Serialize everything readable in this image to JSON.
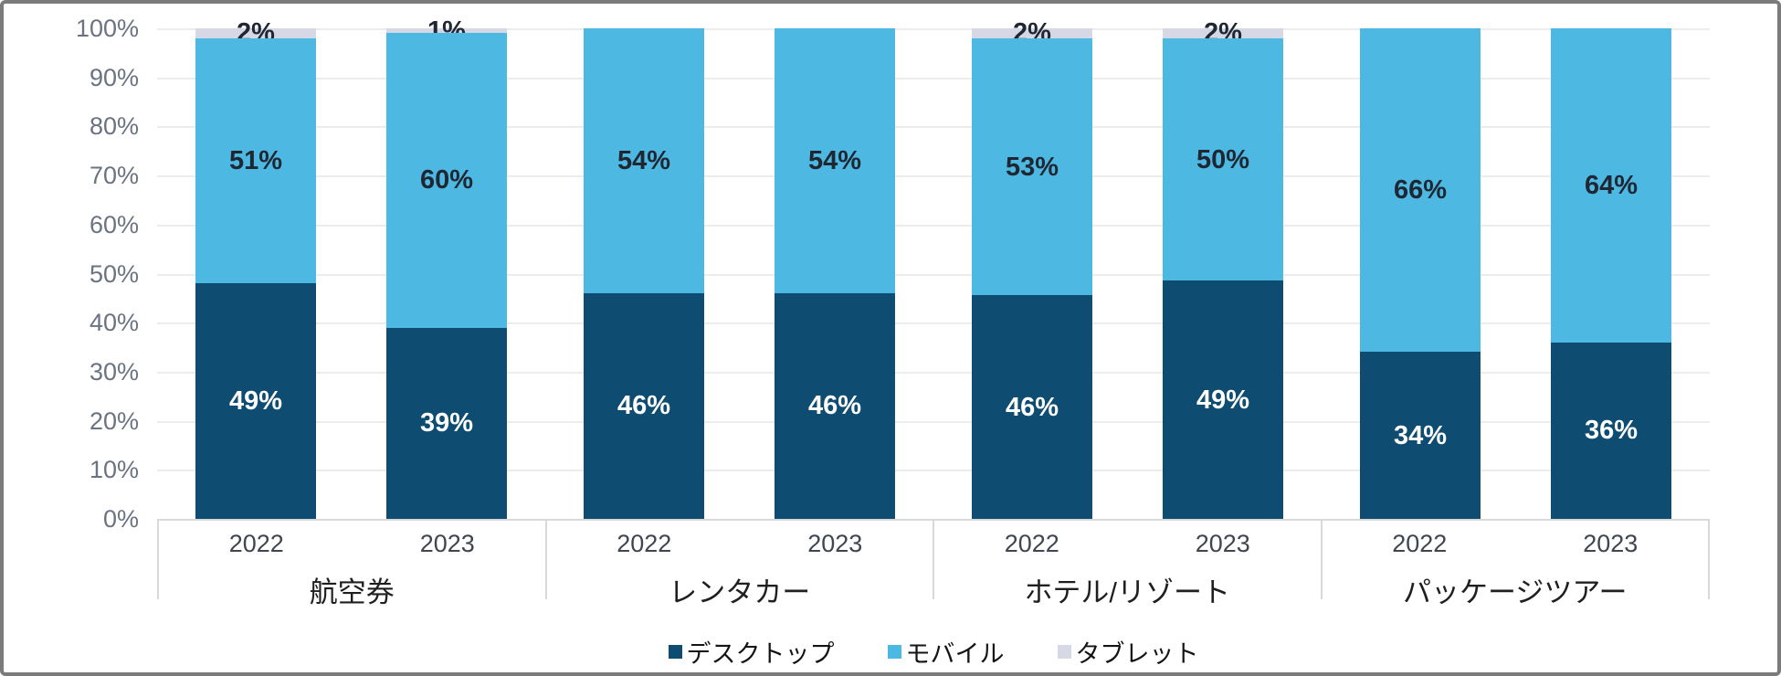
{
  "chart_data": {
    "type": "bar",
    "variant": "100%-stacked-column",
    "unit": "%",
    "grid": true,
    "legend_position": "bottom-center",
    "y_axis": {
      "min": 0,
      "max": 100,
      "tick_step": 10,
      "ticks": [
        "0%",
        "10%",
        "20%",
        "30%",
        "40%",
        "50%",
        "60%",
        "70%",
        "80%",
        "90%",
        "100%"
      ]
    },
    "series": [
      {
        "key": "desktop",
        "name": "デスクトップ",
        "color": "#0e4c71",
        "label_color": "#ffffff"
      },
      {
        "key": "mobile",
        "name": "モバイル",
        "color": "#4db8e2",
        "label_color": "#1f2733"
      },
      {
        "key": "tablet",
        "name": "タブレット",
        "color": "#d6d8e6",
        "label_color": "#1f2733"
      }
    ],
    "groups": [
      {
        "category": "航空券",
        "bars": [
          {
            "year": "2022",
            "desktop": 49,
            "mobile": 51,
            "tablet": 2
          },
          {
            "year": "2023",
            "desktop": 39,
            "mobile": 60,
            "tablet": 1
          }
        ]
      },
      {
        "category": "レンタカー",
        "bars": [
          {
            "year": "2022",
            "desktop": 46,
            "mobile": 54,
            "tablet": 0
          },
          {
            "year": "2023",
            "desktop": 46,
            "mobile": 54,
            "tablet": 0
          }
        ]
      },
      {
        "category": "ホテル/リゾート",
        "bars": [
          {
            "year": "2022",
            "desktop": 46,
            "mobile": 53,
            "tablet": 2
          },
          {
            "year": "2023",
            "desktop": 49,
            "mobile": 50,
            "tablet": 2
          }
        ]
      },
      {
        "category": "パッケージツアー",
        "bars": [
          {
            "year": "2022",
            "desktop": 34,
            "mobile": 66,
            "tablet": 0
          },
          {
            "year": "2023",
            "desktop": 36,
            "mobile": 64,
            "tablet": 0
          }
        ]
      }
    ],
    "colors": {
      "gridline": "#ececec",
      "axis_line": "#d9d9d9",
      "y_tick_label": "#6a7382",
      "year_label": "#3f4650",
      "category_label": "#1f1f1f",
      "frame_border": "#7b7b7b",
      "background": "#ffffff"
    }
  }
}
